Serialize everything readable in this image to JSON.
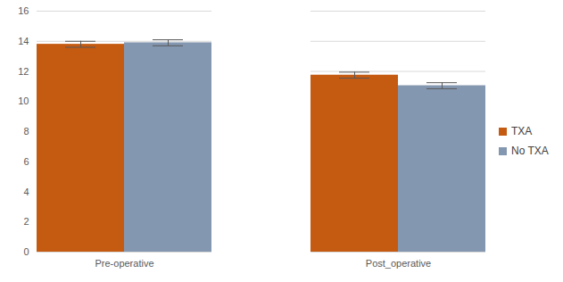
{
  "chart_data": {
    "type": "bar",
    "categories": [
      "Pre-operative",
      "Post_operative"
    ],
    "series": [
      {
        "name": "TXA",
        "color": "#c55a11",
        "values": [
          13.8,
          11.75
        ],
        "errors": [
          0.2,
          0.2
        ]
      },
      {
        "name": "No TXA",
        "color": "#8497b0",
        "values": [
          13.9,
          11.05
        ],
        "errors": [
          0.2,
          0.2
        ]
      }
    ],
    "ylim": [
      0,
      16
    ],
    "yticks": [
      0,
      2,
      4,
      6,
      8,
      10,
      12,
      14,
      16
    ],
    "grid": true,
    "legend": "right"
  }
}
